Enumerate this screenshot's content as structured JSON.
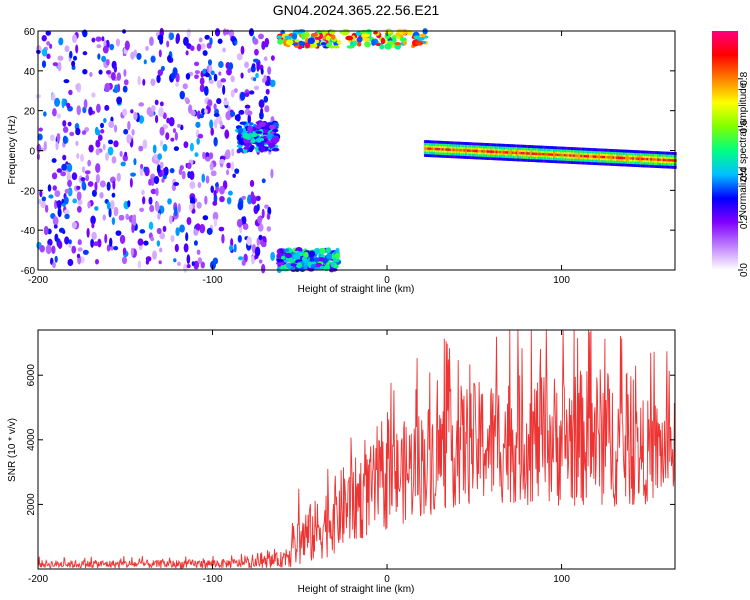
{
  "title": "GN04.2024.365.22.56.E21",
  "chart_data": [
    {
      "type": "heatmap",
      "title": "GN04.2024.365.22.56.E21",
      "xlabel": "Height of straight line (km)",
      "ylabel": "Frequency (Hz)",
      "xlim": [
        -200,
        165
      ],
      "ylim": [
        -60,
        60
      ],
      "xticks": [
        "-200",
        "-100",
        "0",
        "100"
      ],
      "xtick_values": [
        -200,
        -100,
        0,
        100
      ],
      "yticks": [
        "60",
        "40",
        "20",
        "0",
        "-20",
        "-40",
        "-60"
      ],
      "ytick_values": [
        60,
        40,
        20,
        0,
        -20,
        -40,
        -60
      ],
      "colorbar": {
        "label": "Normalized spectral amplitude",
        "range": [
          0,
          1
        ],
        "ticks": [
          "0.0",
          "0.2",
          "0.4",
          "0.6",
          "0.8"
        ],
        "tick_values": [
          0,
          0.2,
          0.4,
          0.6,
          0.8
        ],
        "colors": [
          "#ffffff",
          "#c080ff",
          "#8000ff",
          "#0000ff",
          "#00c0ff",
          "#00ff80",
          "#80ff00",
          "#ffff00",
          "#ff8000",
          "#ff0000",
          "#ff0080"
        ]
      },
      "features": [
        {
          "kind": "noise",
          "x_range": [
            -200,
            -65
          ],
          "y_range": [
            -60,
            60
          ],
          "amplitude": 0.25
        },
        {
          "kind": "band",
          "x_range": [
            -85,
            -63
          ],
          "y_range": [
            0,
            14
          ],
          "amplitude": 0.45
        },
        {
          "kind": "band",
          "x_range": [
            -62,
            22
          ],
          "y_range": [
            52,
            60
          ],
          "amplitude": 0.9
        },
        {
          "kind": "band",
          "x_range": [
            -62,
            -28
          ],
          "y_range": [
            -60,
            -50
          ],
          "amplitude": 0.5
        },
        {
          "kind": "track",
          "x_range": [
            22,
            165
          ],
          "y_start": 1,
          "y_end": -5,
          "amplitude": 0.95
        }
      ]
    },
    {
      "type": "line",
      "xlabel": "Height of straight line (km)",
      "ylabel": "SNR (10 * v/v)",
      "xlim": [
        -200,
        165
      ],
      "ylim": [
        0,
        7400
      ],
      "xticks": [
        "-200",
        "-100",
        "0",
        "100"
      ],
      "xtick_values": [
        -200,
        -100,
        0,
        100
      ],
      "yticks": [
        "2000",
        "4000",
        "6000"
      ],
      "ytick_values": [
        2000,
        4000,
        6000
      ],
      "series": [
        {
          "color": "#ee3333",
          "envelope": [
            {
              "x": -200,
              "mean": 150,
              "spread": 120
            },
            {
              "x": -120,
              "mean": 150,
              "spread": 130
            },
            {
              "x": -75,
              "mean": 180,
              "spread": 150
            },
            {
              "x": -60,
              "mean": 300,
              "spread": 250
            },
            {
              "x": -50,
              "mean": 900,
              "spread": 900
            },
            {
              "x": -40,
              "mean": 1200,
              "spread": 1000
            },
            {
              "x": -25,
              "mean": 1900,
              "spread": 1300
            },
            {
              "x": -10,
              "mean": 2400,
              "spread": 1400
            },
            {
              "x": 0,
              "mean": 2700,
              "spread": 1500
            },
            {
              "x": 20,
              "mean": 3300,
              "spread": 1700
            },
            {
              "x": 40,
              "mean": 3800,
              "spread": 1900
            },
            {
              "x": 70,
              "mean": 4000,
              "spread": 2000
            },
            {
              "x": 100,
              "mean": 4000,
              "spread": 2100
            },
            {
              "x": 125,
              "mean": 4100,
              "spread": 2200
            },
            {
              "x": 140,
              "mean": 3600,
              "spread": 1700
            },
            {
              "x": 165,
              "mean": 3700,
              "spread": 1500
            }
          ]
        }
      ]
    }
  ]
}
